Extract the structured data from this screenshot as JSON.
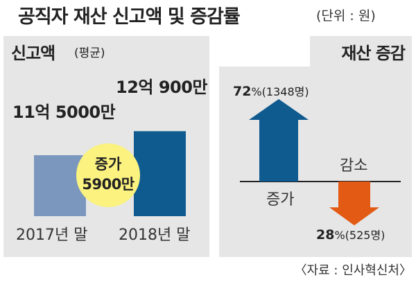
{
  "header": {
    "title": "공직자 재산 신고액 및 증감률",
    "unit": "(단위 : 원)"
  },
  "footer": {
    "source": "〈자료 : 인사혁신처〉"
  },
  "colors": {
    "bar_2017": "#7b97bd",
    "bar_2018": "#0f5a8f",
    "increase_arrow": "#0f5a8f",
    "decrease_arrow": "#e35a14",
    "circle": "#fbf280",
    "panel": "#e6e6e6"
  },
  "chart_data": [
    {
      "type": "bar",
      "title": "신고액",
      "subtitle": "(평균)",
      "categories": [
        "2017년 말",
        "2018년 말"
      ],
      "values": [
        1150000000,
        1209000000
      ],
      "value_labels": [
        "11억 5000만",
        "12억 900만"
      ],
      "annotation": {
        "line1": "증가",
        "line2": "5900만",
        "value": 59000000
      }
    },
    {
      "type": "bar",
      "title": "재산 증감",
      "categories": [
        "증가",
        "감소"
      ],
      "series": [
        {
          "values": [
            72,
            28
          ],
          "unit": "%"
        }
      ],
      "counts": [
        1348,
        525
      ],
      "pct_labels": [
        "72",
        "28"
      ],
      "pct_unit": "%",
      "count_labels": [
        "(1348명)",
        "(525명)"
      ]
    }
  ]
}
